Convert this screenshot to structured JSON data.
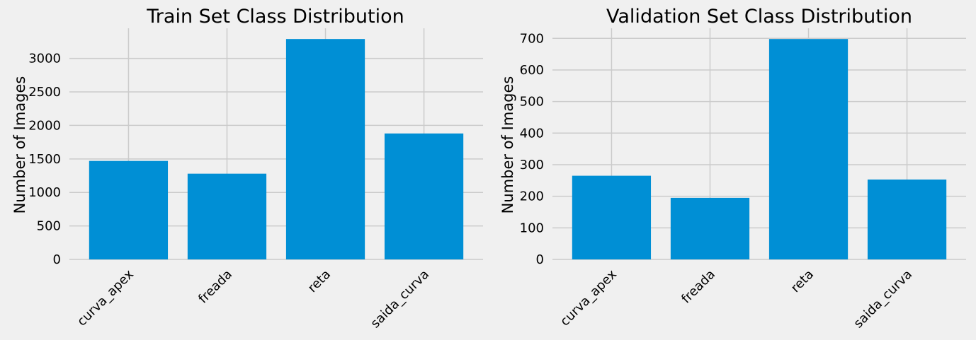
{
  "chart_data": [
    {
      "type": "bar",
      "title": "Train Set Class Distribution",
      "xlabel": "",
      "ylabel": "Number of Images",
      "categories": [
        "curva_apex",
        "freada",
        "reta",
        "saida_curva"
      ],
      "values": [
        1470,
        1280,
        3290,
        1880
      ],
      "ylim": [
        0,
        3450
      ],
      "yticks": [
        0,
        500,
        1000,
        1500,
        2000,
        2500,
        3000
      ],
      "grid": true,
      "color": "#008fd5"
    },
    {
      "type": "bar",
      "title": "Validation Set Class Distribution",
      "xlabel": "",
      "ylabel": "Number of Images",
      "categories": [
        "curva_apex",
        "freada",
        "reta",
        "saida_curva"
      ],
      "values": [
        265,
        195,
        698,
        253
      ],
      "ylim": [
        0,
        732
      ],
      "yticks": [
        0,
        100,
        200,
        300,
        400,
        500,
        600,
        700
      ],
      "grid": true,
      "color": "#008fd5"
    }
  ]
}
